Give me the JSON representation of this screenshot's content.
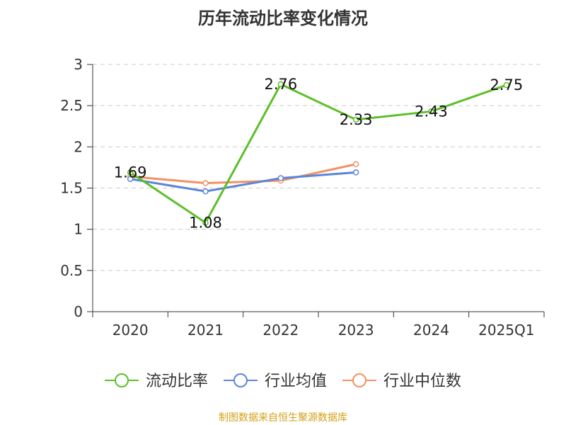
{
  "chart_data": {
    "type": "line",
    "title": "历年流动比率变化情况",
    "categories": [
      "2020",
      "2021",
      "2022",
      "2023",
      "2024",
      "2025Q1"
    ],
    "ylim": [
      0,
      3
    ],
    "yticks": [
      "0",
      "0.5",
      "1",
      "1.5",
      "2",
      "2.5",
      "3"
    ],
    "grid": "horizontal dashed",
    "legend_position": "bottom",
    "series": [
      {
        "name": "流动比率",
        "color": "#5dbf2a",
        "values": [
          1.69,
          1.08,
          2.76,
          2.33,
          2.43,
          2.75
        ],
        "labels": [
          "1.69",
          "1.08",
          "2.76",
          "2.33",
          "2.43",
          "2.75"
        ]
      },
      {
        "name": "行业均值",
        "color": "#5b85d9",
        "values": [
          1.61,
          1.46,
          1.62,
          1.69,
          null,
          null
        ]
      },
      {
        "name": "行业中位数",
        "color": "#f39161",
        "values": [
          1.64,
          1.56,
          1.59,
          1.79,
          null,
          null
        ]
      }
    ]
  },
  "source": "制图数据来自恒生聚源数据库"
}
